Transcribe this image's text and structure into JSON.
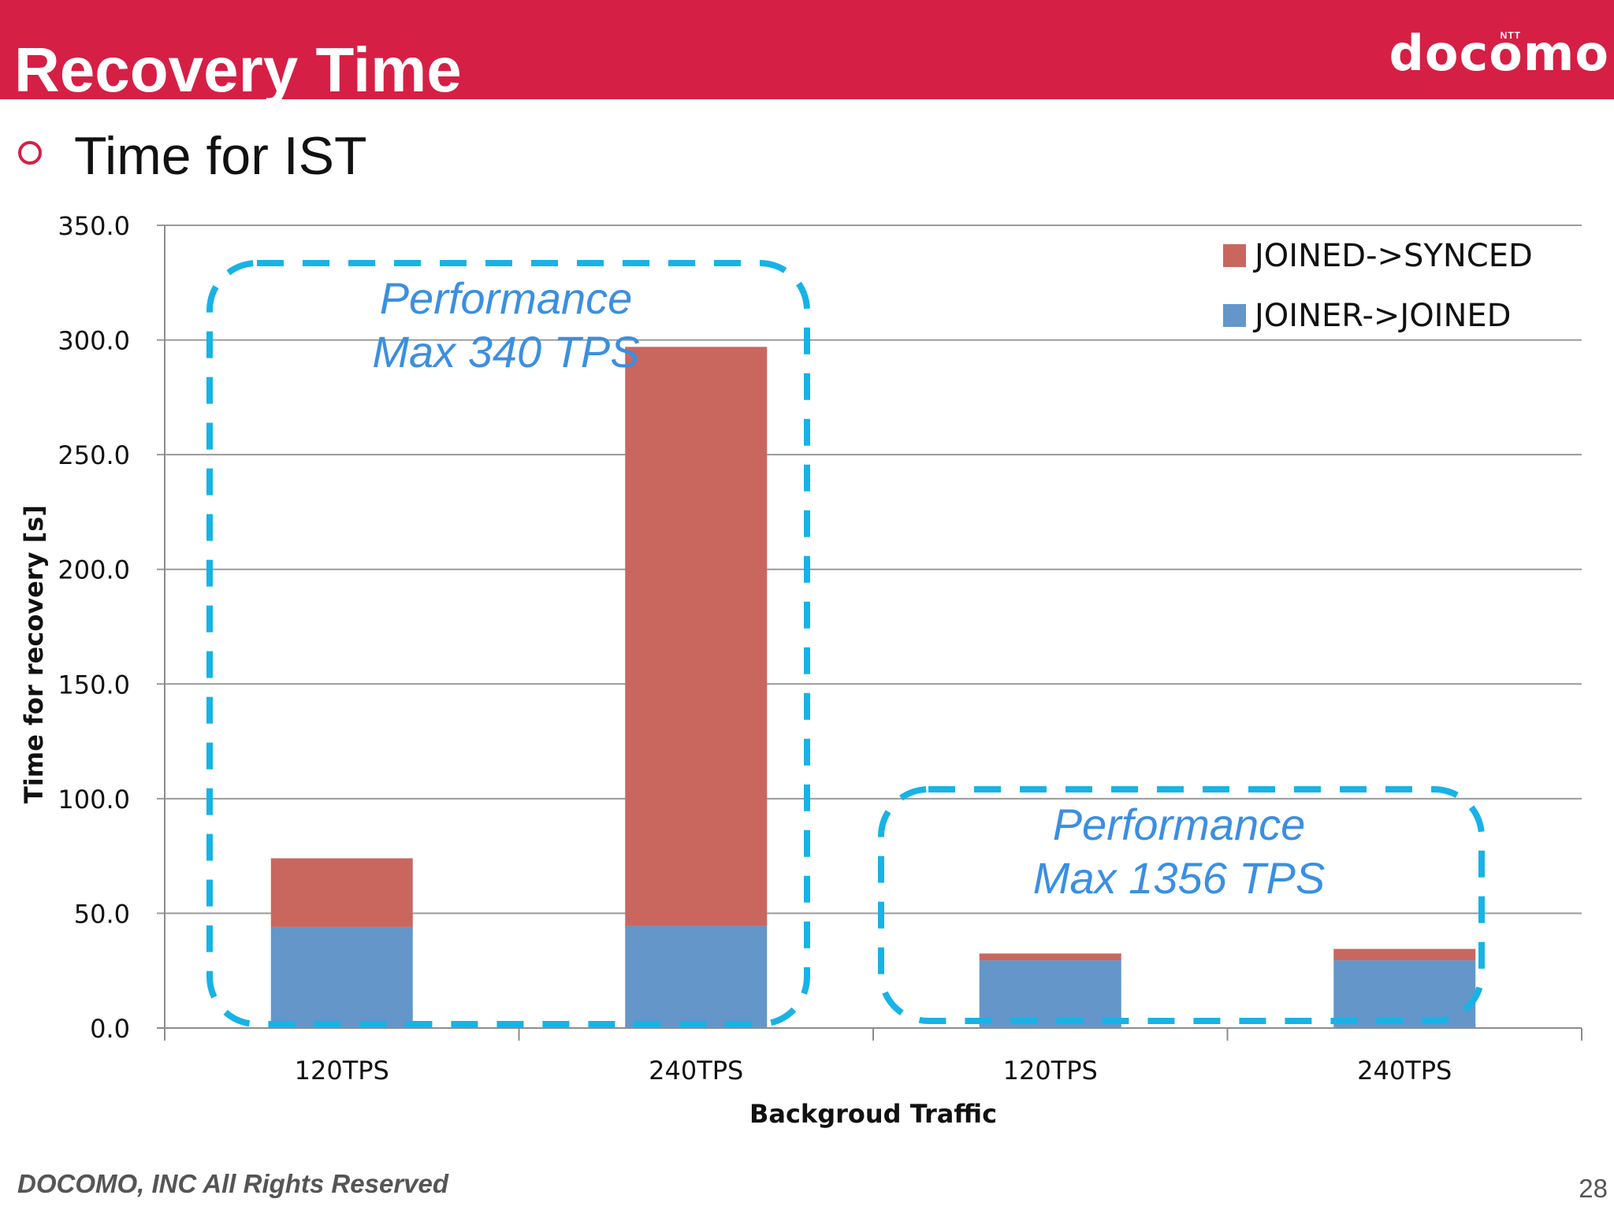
{
  "slide": {
    "title": "Recovery Time",
    "brand": "docomo",
    "brand_small": "NTT",
    "bullet": "Time for IST",
    "footer": "DOCOMO, INC All Rights Reserved",
    "page": "28"
  },
  "colors": {
    "header": "#d61f45",
    "joined_synced": "#c9675f",
    "joiner_joined": "#6496c9",
    "annotation": "#17b3e6",
    "annotation_text": "#3b8fe0"
  },
  "chart_data": {
    "type": "bar",
    "stacked": true,
    "categories": [
      "120TPS",
      "240TPS",
      "120TPS",
      "240TPS"
    ],
    "series": [
      {
        "name": "JOINER->JOINED",
        "values": [
          44.0,
          44.5,
          29.5,
          29.5
        ],
        "color": "#6496c9"
      },
      {
        "name": "JOINED->SYNCED",
        "values": [
          30.0,
          252.5,
          3.0,
          5.0
        ],
        "color": "#c9675f"
      }
    ],
    "xlabel": "Backgroud Traffic",
    "ylabel": "Time for recovery  [s]",
    "ylim": [
      0,
      350
    ],
    "yticks": [
      "0.0",
      "50.0",
      "100.0",
      "150.0",
      "200.0",
      "250.0",
      "300.0",
      "350.0"
    ],
    "grid": true,
    "legend_position": "top-right",
    "annotations": [
      {
        "line1": "Performance",
        "line2": "Max 340 TPS",
        "groups": [
          0,
          1
        ]
      },
      {
        "line1": "Performance",
        "line2": "Max 1356 TPS",
        "groups": [
          2,
          3
        ]
      }
    ]
  }
}
